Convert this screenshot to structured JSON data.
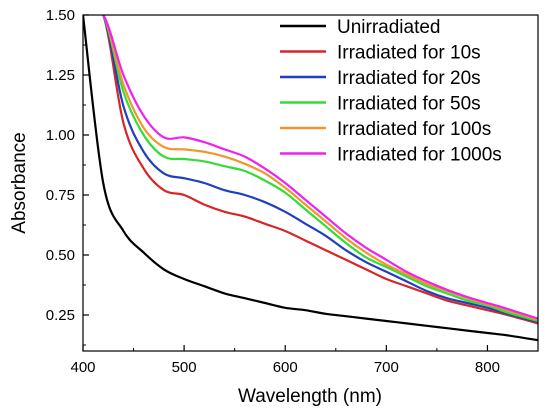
{
  "chart_data": {
    "type": "line",
    "title": "",
    "xlabel": "Wavelength (nm)",
    "ylabel": "Absorbance",
    "xlim": [
      400,
      850
    ],
    "ylim": [
      0.1,
      1.5
    ],
    "x_ticks": [
      400,
      500,
      600,
      700,
      800
    ],
    "x_tick_labels": [
      "400",
      "500",
      "600",
      "700",
      "800"
    ],
    "y_ticks": [
      0.25,
      0.5,
      0.75,
      1.0,
      1.25,
      1.5
    ],
    "y_tick_labels": [
      "0.25",
      "0.50",
      "0.75",
      "1.00",
      "1.25",
      "1.50"
    ],
    "grid": false,
    "legend_position": "top-right",
    "x": [
      400,
      420,
      440,
      460,
      480,
      500,
      520,
      540,
      560,
      580,
      600,
      620,
      640,
      660,
      680,
      700,
      720,
      740,
      760,
      780,
      800,
      820,
      850
    ],
    "series": [
      {
        "name": "Unirradiated",
        "color": "#000000",
        "values": [
          1.5,
          0.8,
          0.6,
          0.51,
          0.44,
          0.4,
          0.37,
          0.34,
          0.32,
          0.3,
          0.28,
          0.27,
          0.255,
          0.245,
          0.235,
          0.225,
          0.215,
          0.205,
          0.195,
          0.185,
          0.175,
          0.165,
          0.145
        ]
      },
      {
        "name": "Irradiated for 10s",
        "color": "#d62728",
        "values": [
          1.5,
          1.5,
          1.05,
          0.86,
          0.77,
          0.75,
          0.71,
          0.68,
          0.66,
          0.63,
          0.6,
          0.56,
          0.52,
          0.48,
          0.44,
          0.4,
          0.37,
          0.34,
          0.31,
          0.29,
          0.27,
          0.25,
          0.215
        ]
      },
      {
        "name": "Irradiated for 20s",
        "color": "#1f3fbf",
        "values": [
          1.5,
          1.5,
          1.12,
          0.93,
          0.84,
          0.82,
          0.8,
          0.77,
          0.75,
          0.72,
          0.68,
          0.63,
          0.58,
          0.52,
          0.47,
          0.43,
          0.39,
          0.35,
          0.32,
          0.3,
          0.28,
          0.255,
          0.22
        ]
      },
      {
        "name": "Irradiated for 50s",
        "color": "#33dd33",
        "values": [
          1.5,
          1.5,
          1.18,
          1.0,
          0.91,
          0.9,
          0.89,
          0.87,
          0.85,
          0.81,
          0.76,
          0.69,
          0.62,
          0.55,
          0.49,
          0.45,
          0.41,
          0.37,
          0.34,
          0.31,
          0.29,
          0.26,
          0.225
        ]
      },
      {
        "name": "Irradiated for 100s",
        "color": "#f0962a",
        "values": [
          1.5,
          1.5,
          1.21,
          1.03,
          0.95,
          0.94,
          0.93,
          0.91,
          0.88,
          0.84,
          0.78,
          0.71,
          0.64,
          0.57,
          0.51,
          0.46,
          0.42,
          0.38,
          0.35,
          0.32,
          0.295,
          0.27,
          0.23
        ]
      },
      {
        "name": "Irradiated for 1000s",
        "color": "#ee22ee",
        "values": [
          1.5,
          1.5,
          1.25,
          1.08,
          0.99,
          0.99,
          0.97,
          0.94,
          0.91,
          0.86,
          0.8,
          0.73,
          0.66,
          0.59,
          0.53,
          0.48,
          0.43,
          0.39,
          0.355,
          0.325,
          0.3,
          0.275,
          0.235
        ]
      }
    ]
  }
}
